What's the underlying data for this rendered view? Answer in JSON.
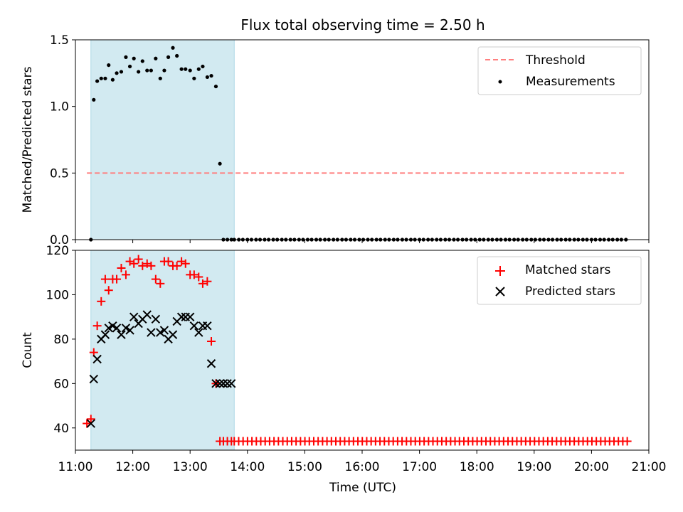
{
  "chart_data": [
    {
      "type": "scatter",
      "title": "Flux total observing time = 2.50 h",
      "xlabel": "",
      "ylabel": "Matched/Predicted stars",
      "xlim": [
        11.0,
        21.0
      ],
      "ylim": [
        0.0,
        1.5
      ],
      "yticks": [
        0.0,
        0.5,
        1.0,
        1.5
      ],
      "ytick_labels": [
        "0.0",
        "0.5",
        "1.0",
        "1.5"
      ],
      "shaded_span": [
        11.27,
        13.77
      ],
      "shade_color": "#add8e6",
      "threshold": {
        "name": "Threshold",
        "y": 0.5,
        "x_range": [
          11.2,
          20.6
        ],
        "color": "#ff7f7f"
      },
      "legend": {
        "placement": "top-right",
        "entries": [
          "Threshold",
          "Measurements"
        ]
      },
      "series": [
        {
          "name": "Measurements",
          "color": "#000000",
          "x": [
            11.27,
            11.32,
            11.38,
            11.45,
            11.52,
            11.58,
            11.65,
            11.72,
            11.8,
            11.88,
            11.95,
            12.02,
            12.1,
            12.17,
            12.25,
            12.32,
            12.4,
            12.48,
            12.55,
            12.62,
            12.7,
            12.77,
            12.85,
            12.92,
            13.0,
            13.07,
            13.15,
            13.22,
            13.3,
            13.37,
            13.45,
            13.52,
            13.58,
            13.65,
            13.72,
            13.77,
            13.85,
            13.92,
            14.0,
            14.07,
            14.15,
            14.22,
            14.3,
            14.37,
            14.45,
            14.52,
            14.6,
            14.67,
            14.75,
            14.82,
            14.9,
            14.97,
            15.05,
            15.12,
            15.2,
            15.27,
            15.35,
            15.42,
            15.5,
            15.57,
            15.65,
            15.72,
            15.8,
            15.87,
            15.95,
            16.02,
            16.1,
            16.17,
            16.25,
            16.32,
            16.4,
            16.47,
            16.55,
            16.62,
            16.7,
            16.77,
            16.85,
            16.92,
            17.0,
            17.07,
            17.15,
            17.22,
            17.3,
            17.37,
            17.45,
            17.52,
            17.6,
            17.67,
            17.75,
            17.82,
            17.9,
            17.97,
            18.05,
            18.12,
            18.2,
            18.27,
            18.35,
            18.42,
            18.5,
            18.57,
            18.65,
            18.72,
            18.8,
            18.87,
            18.95,
            19.02,
            19.1,
            19.17,
            19.25,
            19.32,
            19.4,
            19.47,
            19.55,
            19.62,
            19.7,
            19.77,
            19.85,
            19.92,
            20.0,
            20.07,
            20.15,
            20.22,
            20.3,
            20.37,
            20.45,
            20.52,
            20.6
          ],
          "y": [
            0.0,
            1.05,
            1.19,
            1.21,
            1.21,
            1.31,
            1.2,
            1.25,
            1.26,
            1.37,
            1.3,
            1.36,
            1.26,
            1.34,
            1.27,
            1.27,
            1.36,
            1.21,
            1.27,
            1.37,
            1.44,
            1.38,
            1.28,
            1.28,
            1.27,
            1.21,
            1.28,
            1.3,
            1.22,
            1.23,
            1.15,
            0.57,
            0.0,
            0.0,
            0.0,
            0.0,
            0.0,
            0.0,
            0.0,
            0.0,
            0.0,
            0.0,
            0.0,
            0.0,
            0.0,
            0.0,
            0.0,
            0.0,
            0.0,
            0.0,
            0.0,
            0.0,
            0.0,
            0.0,
            0.0,
            0.0,
            0.0,
            0.0,
            0.0,
            0.0,
            0.0,
            0.0,
            0.0,
            0.0,
            0.0,
            0.0,
            0.0,
            0.0,
            0.0,
            0.0,
            0.0,
            0.0,
            0.0,
            0.0,
            0.0,
            0.0,
            0.0,
            0.0,
            0.0,
            0.0,
            0.0,
            0.0,
            0.0,
            0.0,
            0.0,
            0.0,
            0.0,
            0.0,
            0.0,
            0.0,
            0.0,
            0.0,
            0.0,
            0.0,
            0.0,
            0.0,
            0.0,
            0.0,
            0.0,
            0.0,
            0.0,
            0.0,
            0.0,
            0.0,
            0.0,
            0.0,
            0.0,
            0.0,
            0.0,
            0.0,
            0.0,
            0.0,
            0.0,
            0.0,
            0.0,
            0.0,
            0.0,
            0.0,
            0.0,
            0.0,
            0.0,
            0.0,
            0.0,
            0.0,
            0.0,
            0.0,
            0.0
          ]
        }
      ]
    },
    {
      "type": "scatter",
      "title": "",
      "xlabel": "Time (UTC)",
      "ylabel": "Count",
      "xlim": [
        11.0,
        21.0
      ],
      "ylim": [
        30,
        120
      ],
      "yticks": [
        40,
        60,
        80,
        100,
        120
      ],
      "ytick_labels": [
        "40",
        "60",
        "80",
        "100",
        "120"
      ],
      "xticks": [
        11,
        12,
        13,
        14,
        15,
        16,
        17,
        18,
        19,
        20,
        21
      ],
      "xtick_labels": [
        "11:00",
        "12:00",
        "13:00",
        "14:00",
        "15:00",
        "16:00",
        "17:00",
        "18:00",
        "19:00",
        "20:00",
        "21:00"
      ],
      "shaded_span": [
        11.27,
        13.77
      ],
      "shade_color": "#add8e6",
      "legend": {
        "placement": "top-right",
        "entries": [
          "Matched stars",
          "Predicted stars"
        ]
      },
      "series": [
        {
          "name": "Matched stars",
          "color": "#ff0000",
          "marker": "plus",
          "x": [
            11.2,
            11.27,
            11.32,
            11.38,
            11.45,
            11.52,
            11.58,
            11.65,
            11.72,
            11.8,
            11.88,
            11.95,
            12.02,
            12.1,
            12.17,
            12.25,
            12.32,
            12.4,
            12.48,
            12.55,
            12.62,
            12.7,
            12.77,
            12.85,
            12.92,
            13.0,
            13.07,
            13.15,
            13.22,
            13.3,
            13.37,
            13.45,
            13.52,
            13.58,
            13.65,
            13.72
          ],
          "y": [
            42,
            44,
            74,
            86,
            97,
            107,
            102,
            107,
            107,
            112,
            109,
            115,
            114,
            116,
            113,
            114,
            113,
            107,
            105,
            115,
            115,
            113,
            113,
            115,
            114,
            109,
            109,
            108,
            105,
            106,
            79,
            60,
            34,
            34,
            34,
            34
          ]
        },
        {
          "name": "Predicted stars",
          "color": "#000000",
          "marker": "x",
          "x": [
            11.27,
            11.32,
            11.38,
            11.45,
            11.52,
            11.58,
            11.65,
            11.72,
            11.8,
            11.88,
            11.95,
            12.02,
            12.1,
            12.17,
            12.25,
            12.32,
            12.4,
            12.48,
            12.55,
            12.62,
            12.7,
            12.77,
            12.85,
            12.92,
            13.0,
            13.07,
            13.15,
            13.22,
            13.3,
            13.37,
            13.45,
            13.52,
            13.58,
            13.65,
            13.72
          ],
          "y": [
            42,
            62,
            71,
            80,
            82,
            85,
            86,
            85,
            82,
            85,
            84,
            90,
            87,
            89,
            91,
            83,
            89,
            83,
            84,
            80,
            82,
            88,
            90,
            90,
            90,
            86,
            83,
            86,
            86,
            69,
            60,
            60,
            60,
            60,
            60
          ]
        }
      ],
      "flat_series": {
        "name": "Matched stars",
        "y": 34,
        "x_start": 13.77,
        "x_end": 20.65,
        "step": 0.077
      }
    }
  ]
}
